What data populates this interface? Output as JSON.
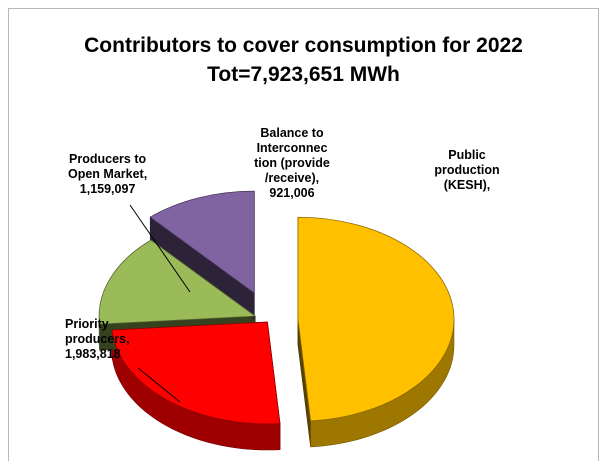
{
  "chart_data": {
    "type": "pie",
    "style": "3d-exploded",
    "title": "Contributors to cover consumption for 2022",
    "subtitle": "Tot=7,923,651 MWh",
    "total": 7923651,
    "slices": [
      {
        "name": "Public production (KESH),",
        "value": 3859730,
        "color": "#FFC000",
        "label_lines": [
          "Public",
          "production",
          "(KESH),"
        ]
      },
      {
        "name": "Priority producers, 1,983,818",
        "value": 1983818,
        "color": "#FF0000",
        "label_lines": [
          "Priority",
          "producers,",
          "1,983,818"
        ]
      },
      {
        "name": "Producers to Open Market, 1,159,097",
        "value": 1159097,
        "color": "#9BBB59",
        "label_lines": [
          "Producers to",
          "Open Market,",
          "1,159,097"
        ]
      },
      {
        "name": "Balance to Interconnection (provide/receive), 921,006",
        "value": 921006,
        "color": "#8064A2",
        "label_lines": [
          "Balance to",
          "Interconnec",
          "tion  (provide",
          "/receive),",
          "921,006"
        ]
      }
    ]
  }
}
